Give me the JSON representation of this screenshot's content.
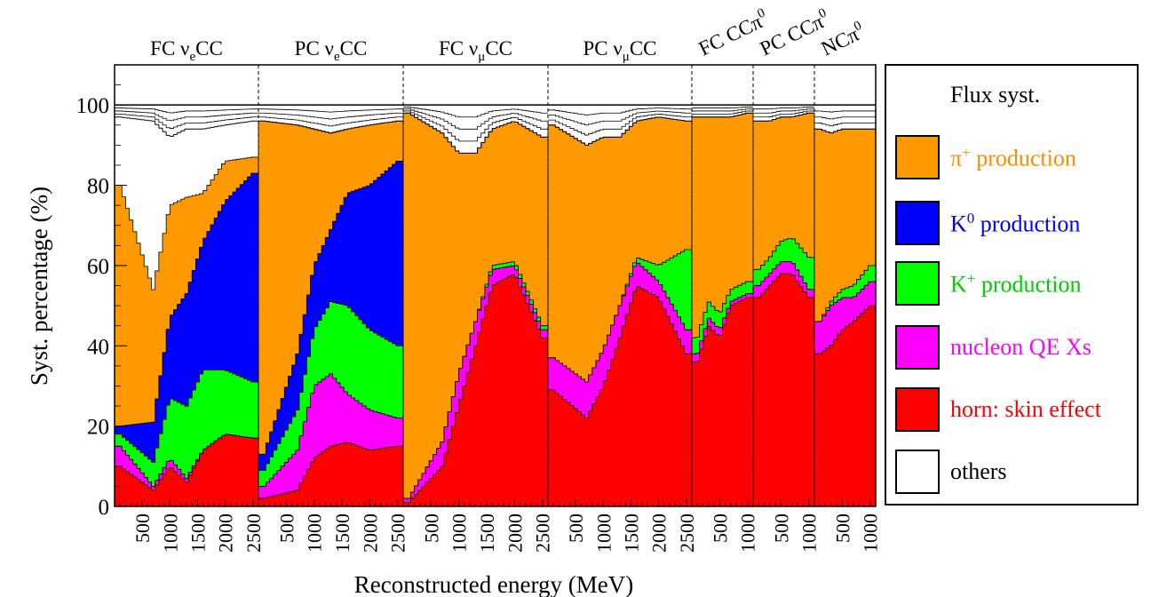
{
  "chart_data": {
    "type": "area",
    "xlabel": "Reconstructed energy (MeV)",
    "ylabel": "Syst. percentage (%)",
    "ylim": [
      0,
      100
    ],
    "y_ticks": [
      "0",
      "20",
      "40",
      "60",
      "80",
      "100"
    ],
    "legend_title": "Flux syst.",
    "legend_placement": "right",
    "series": [
      {
        "name": "horn: skin effect",
        "color": "#ff0000"
      },
      {
        "name": "nucleon QE Xs",
        "color": "#ff00ff"
      },
      {
        "name": "K+ production",
        "color": "#00ff00"
      },
      {
        "name": "K0 production",
        "color": "#0000ff"
      },
      {
        "name": "π+ production",
        "color": "#ff9900"
      },
      {
        "name": "others",
        "color": "#ffffff"
      }
    ],
    "panels": [
      {
        "label": "FC νeCC",
        "label_base": "FC ν",
        "label_sub": "e",
        "label_tail": "CC",
        "label_sup": "",
        "xrange": [
          0,
          2600
        ],
        "ticks": [
          500,
          1000,
          1500,
          2000,
          2500
        ],
        "x": [
          100,
          700,
          1000,
          1300,
          1600,
          2000,
          2500
        ],
        "horn": [
          10,
          4,
          10,
          6,
          14,
          18,
          17
        ],
        "qe": [
          5,
          1,
          2,
          1,
          0,
          0,
          0
        ],
        "kplus": [
          3,
          6,
          15,
          18,
          20,
          16,
          14
        ],
        "k0": [
          2,
          10,
          20,
          28,
          32,
          42,
          52
        ],
        "pi": [
          60,
          33,
          28,
          24,
          12,
          10,
          4
        ],
        "total": [
          97,
          96,
          92,
          94,
          94,
          95,
          96
        ]
      },
      {
        "label": "PC νeCC",
        "label_base": "PC ν",
        "label_sub": "e",
        "label_tail": "CC",
        "label_sup": "",
        "xrange": [
          0,
          2600
        ],
        "ticks": [
          500,
          1000,
          1500,
          2000,
          2500
        ],
        "x": [
          100,
          700,
          1000,
          1300,
          1600,
          2000,
          2500
        ],
        "horn": [
          2,
          4,
          12,
          15,
          16,
          14,
          15
        ],
        "qe": [
          3,
          10,
          18,
          18,
          12,
          10,
          7
        ],
        "kplus": [
          4,
          10,
          14,
          18,
          22,
          20,
          18
        ],
        "k0": [
          4,
          14,
          16,
          18,
          28,
          36,
          46
        ],
        "pi": [
          83,
          57,
          34,
          24,
          16,
          15,
          10
        ],
        "total": [
          96,
          95,
          94,
          93,
          94,
          95,
          96
        ]
      },
      {
        "label": "FC νμCC",
        "label_base": "FC ν",
        "label_sub": "μ",
        "label_tail": "CC",
        "label_sup": "",
        "xrange": [
          0,
          2600
        ],
        "ticks": [
          500,
          1000,
          1500,
          2000,
          2500
        ],
        "x": [
          100,
          700,
          1000,
          1300,
          1600,
          2000,
          2500
        ],
        "horn": [
          1,
          10,
          25,
          40,
          55,
          58,
          42
        ],
        "qe": [
          1,
          6,
          8,
          6,
          4,
          2,
          2
        ],
        "kplus": [
          0,
          0,
          0,
          0,
          1,
          1,
          1
        ],
        "k0": [
          0,
          0,
          0,
          0,
          0,
          0,
          0
        ],
        "pi": [
          96,
          77,
          55,
          42,
          34,
          35,
          47
        ],
        "total": [
          98,
          93,
          88,
          88,
          94,
          96,
          92
        ]
      },
      {
        "label": "PC νμCC",
        "label_base": "PC ν",
        "label_sub": "μ",
        "label_tail": "CC",
        "label_sup": "",
        "xrange": [
          0,
          2600
        ],
        "ticks": [
          500,
          1000,
          1500,
          2000,
          2500
        ],
        "x": [
          100,
          700,
          1000,
          1300,
          1600,
          2000,
          2500
        ],
        "horn": [
          29,
          22,
          30,
          42,
          55,
          52,
          38
        ],
        "qe": [
          8,
          9,
          9,
          8,
          6,
          4,
          6
        ],
        "kplus": [
          0,
          0,
          0,
          0,
          1,
          4,
          20
        ],
        "k0": [
          0,
          0,
          0,
          0,
          0,
          0,
          0
        ],
        "pi": [
          58,
          59,
          53,
          42,
          34,
          37,
          32
        ],
        "total": [
          95,
          90,
          92,
          92,
          96,
          97,
          96
        ]
      },
      {
        "label": "FC CCπ0",
        "label_base": "FC CCπ",
        "label_sub": "",
        "label_tail": "",
        "label_sup": "0",
        "xrange": [
          0,
          1100
        ],
        "ticks": [
          500,
          1000
        ],
        "x": [
          100,
          300,
          500,
          700,
          1000
        ],
        "horn": [
          36,
          45,
          42,
          50,
          52
        ],
        "qe": [
          2,
          2,
          2,
          1,
          1
        ],
        "kplus": [
          4,
          4,
          4,
          3,
          3
        ],
        "k0": [
          0,
          0,
          0,
          0,
          0
        ],
        "pi": [
          55,
          46,
          49,
          43,
          42
        ],
        "total": [
          97,
          97,
          97,
          97,
          98
        ]
      },
      {
        "label": "PC CCπ0",
        "label_base": "PC CCπ",
        "label_sub": "",
        "label_tail": "",
        "label_sup": "0",
        "xrange": [
          0,
          1100
        ],
        "ticks": [
          500,
          1000
        ],
        "x": [
          100,
          300,
          500,
          700,
          1000
        ],
        "horn": [
          52,
          55,
          58,
          58,
          52
        ],
        "qe": [
          3,
          3,
          3,
          3,
          2
        ],
        "kplus": [
          4,
          4,
          5,
          6,
          8
        ],
        "k0": [
          0,
          0,
          0,
          0,
          0
        ],
        "pi": [
          37,
          34,
          31,
          30,
          36
        ],
        "total": [
          96,
          96,
          97,
          97,
          98
        ]
      },
      {
        "label": "NCπ0",
        "label_base": "NCπ",
        "label_sub": "",
        "label_tail": "",
        "label_sup": "0",
        "xrange": [
          0,
          1100
        ],
        "ticks": [
          500,
          1000
        ],
        "x": [
          100,
          300,
          500,
          700,
          1000
        ],
        "horn": [
          38,
          40,
          44,
          46,
          50
        ],
        "qe": [
          8,
          10,
          8,
          6,
          6
        ],
        "kplus": [
          0,
          1,
          2,
          3,
          4
        ],
        "k0": [
          0,
          0,
          0,
          0,
          0
        ],
        "pi": [
          48,
          42,
          40,
          39,
          34
        ],
        "total": [
          94,
          93,
          94,
          94,
          94
        ]
      }
    ]
  },
  "legend": {
    "title": "Flux syst.",
    "items": [
      {
        "id": "pi",
        "label": "π",
        "sup": "+",
        "tail": " production",
        "color": "#ff9900",
        "text_color": "#ff8c00"
      },
      {
        "id": "k0",
        "label": "K",
        "sup": "0",
        "tail": " production",
        "color": "#0000ff",
        "text_color": "#0000ff"
      },
      {
        "id": "kplus",
        "label": "K",
        "sup": "+",
        "tail": " production",
        "color": "#00ff00",
        "text_color": "#00cc00"
      },
      {
        "id": "qe",
        "label": "nucleon QE Xs",
        "sup": "",
        "tail": "",
        "color": "#ff00ff",
        "text_color": "#ff00ff"
      },
      {
        "id": "horn",
        "label": "horn: skin effect",
        "sup": "",
        "tail": "",
        "color": "#ff0000",
        "text_color": "#ff0000"
      },
      {
        "id": "others",
        "label": "others",
        "sup": "",
        "tail": "",
        "color": "#ffffff",
        "text_color": "#000000"
      }
    ]
  }
}
